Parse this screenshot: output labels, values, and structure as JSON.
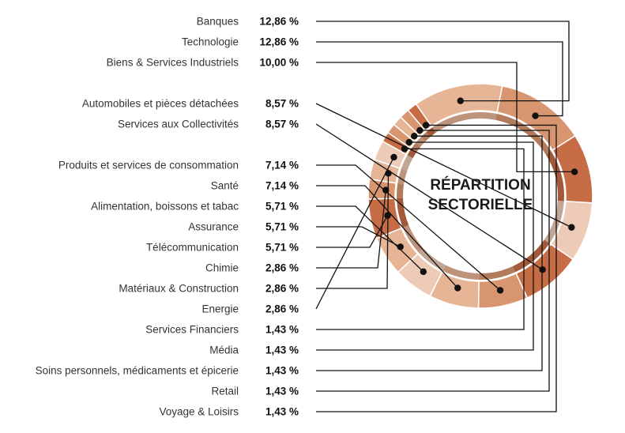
{
  "chart_data": {
    "type": "pie",
    "title": "RÉPARTITION SECTORIELLE",
    "title_lines": [
      "RÉPARTITION",
      "SECTORIELLE"
    ],
    "donut": true,
    "categories": [
      "Banques",
      "Technologie",
      "Biens & Services Industriels",
      "Automobiles et pièces détachées",
      "Services aux Collectivités",
      "Produits et services de consommation",
      "Santé",
      "Alimentation, boissons et tabac",
      "Assurance",
      "Télécommunication",
      "Chimie",
      "Matériaux & Construction",
      "Energie",
      "Services Financiers",
      "Média",
      "Soins personnels, médicaments et épicerie",
      "Retail",
      "Voyage & Loisirs"
    ],
    "values": [
      12.86,
      12.86,
      10.0,
      8.57,
      8.57,
      7.14,
      7.14,
      5.71,
      5.71,
      5.71,
      2.86,
      2.86,
      2.86,
      1.43,
      1.43,
      1.43,
      1.43,
      1.43
    ],
    "value_labels": [
      "12,86 %",
      "12,86 %",
      "10,00 %",
      "8,57 %",
      "8,57 %",
      "7,14 %",
      "7,14 %",
      "5,71 %",
      "5,71 %",
      "5,71 %",
      "2,86 %",
      "2,86 %",
      "2,86 %",
      "1,43 %",
      "1,43 %",
      "1,43 %",
      "1,43 %",
      "1,43 %"
    ],
    "legend": "left",
    "colors": {
      "dark": "#c76d45",
      "medium": "#d89670",
      "light": "#e6b596",
      "pale": "#edcbb6",
      "leader": "#111111"
    }
  }
}
